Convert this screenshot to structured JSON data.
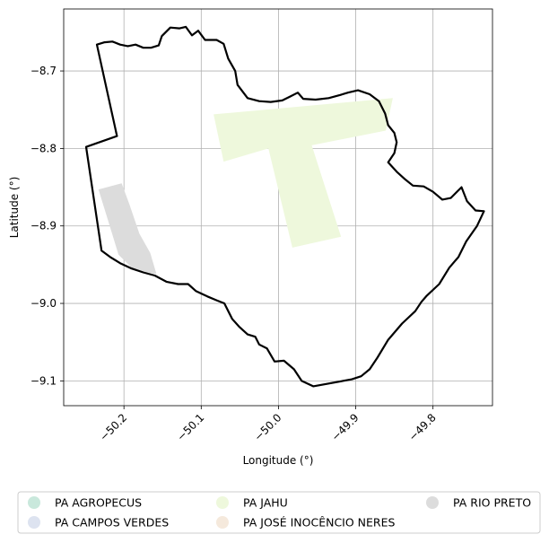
{
  "chart_data": {
    "type": "map",
    "xlabel": "Longitude (°)",
    "ylabel": "Latitude (°)",
    "xlim": [
      -50.278,
      -49.723
    ],
    "ylim": [
      -9.132,
      -8.62
    ],
    "x_ticks": [
      -50.2,
      -50.1,
      -50.0,
      -49.9,
      -49.8
    ],
    "x_tick_labels": [
      "−50.2",
      "−50.1",
      "−50.0",
      "−49.9",
      "−49.8"
    ],
    "y_ticks": [
      -8.7,
      -8.8,
      -8.9,
      -9.0,
      -9.1
    ],
    "y_tick_labels": [
      "−8.7",
      "−8.8",
      "−8.9",
      "−9.0",
      "−9.1"
    ],
    "grid": true,
    "legend_position": "bottom",
    "boundary_color": "#000000",
    "legend": [
      {
        "label": "PA AGROPECUS",
        "color": "#c9e8dc"
      },
      {
        "label": "PA CAMPOS VERDES",
        "color": "#dde3f0"
      },
      {
        "label": "PA JAHU",
        "color": "#eef8dc"
      },
      {
        "label": "PA JOSÉ INOCÊNCIO NERES",
        "color": "#f5e9dc"
      },
      {
        "label": "PA RIO PRETO",
        "color": "#dcdcdc"
      }
    ],
    "shapes": [
      {
        "name": "PA JAHU",
        "color": "#eef8dc",
        "coords": [
          [
            -50.084,
            -8.756
          ],
          [
            -49.852,
            -8.735
          ],
          [
            -49.861,
            -8.777
          ],
          [
            -49.957,
            -8.796
          ],
          [
            -49.919,
            -8.914
          ],
          [
            -49.982,
            -8.928
          ],
          [
            -50.013,
            -8.8
          ],
          [
            -50.071,
            -8.817
          ]
        ]
      },
      {
        "name": "PA RIO PRETO",
        "color": "#dcdcdc",
        "coords": [
          [
            -50.233,
            -8.853
          ],
          [
            -50.203,
            -8.845
          ],
          [
            -50.193,
            -8.872
          ],
          [
            -50.18,
            -8.91
          ],
          [
            -50.166,
            -8.935
          ],
          [
            -50.158,
            -8.962
          ],
          [
            -50.17,
            -8.96
          ],
          [
            -50.19,
            -8.954
          ],
          [
            -50.207,
            -8.937
          ],
          [
            -50.22,
            -8.895
          ]
        ]
      }
    ],
    "boundary": [
      [
        -50.235,
        -8.666
      ],
      [
        -50.225,
        -8.663
      ],
      [
        -50.215,
        -8.662
      ],
      [
        -50.205,
        -8.666
      ],
      [
        -50.195,
        -8.668
      ],
      [
        -50.185,
        -8.666
      ],
      [
        -50.175,
        -8.67
      ],
      [
        -50.165,
        -8.67
      ],
      [
        -50.155,
        -8.667
      ],
      [
        -50.151,
        -8.655
      ],
      [
        -50.14,
        -8.644
      ],
      [
        -50.128,
        -8.645
      ],
      [
        -50.12,
        -8.643
      ],
      [
        -50.112,
        -8.654
      ],
      [
        -50.104,
        -8.648
      ],
      [
        -50.095,
        -8.66
      ],
      [
        -50.08,
        -8.66
      ],
      [
        -50.071,
        -8.665
      ],
      [
        -50.065,
        -8.684
      ],
      [
        -50.056,
        -8.7
      ],
      [
        -50.053,
        -8.718
      ],
      [
        -50.04,
        -8.735
      ],
      [
        -50.025,
        -8.739
      ],
      [
        -50.01,
        -8.74
      ],
      [
        -49.995,
        -8.738
      ],
      [
        -49.985,
        -8.733
      ],
      [
        -49.975,
        -8.728
      ],
      [
        -49.968,
        -8.736
      ],
      [
        -49.952,
        -8.737
      ],
      [
        -49.935,
        -8.735
      ],
      [
        -49.92,
        -8.731
      ],
      [
        -49.91,
        -8.728
      ],
      [
        -49.897,
        -8.725
      ],
      [
        -49.882,
        -8.73
      ],
      [
        -49.87,
        -8.739
      ],
      [
        -49.862,
        -8.755
      ],
      [
        -49.858,
        -8.77
      ],
      [
        -49.85,
        -8.78
      ],
      [
        -49.847,
        -8.792
      ],
      [
        -49.85,
        -8.806
      ],
      [
        -49.858,
        -8.818
      ],
      [
        -49.847,
        -8.83
      ],
      [
        -49.836,
        -8.84
      ],
      [
        -49.826,
        -8.848
      ],
      [
        -49.812,
        -8.849
      ],
      [
        -49.8,
        -8.856
      ],
      [
        -49.788,
        -8.866
      ],
      [
        -49.777,
        -8.864
      ],
      [
        -49.763,
        -8.85
      ],
      [
        -49.756,
        -8.868
      ],
      [
        -49.745,
        -8.88
      ],
      [
        -49.734,
        -8.881
      ],
      [
        -49.743,
        -8.9
      ],
      [
        -49.757,
        -8.92
      ],
      [
        -49.767,
        -8.94
      ],
      [
        -49.779,
        -8.954
      ],
      [
        -49.792,
        -8.975
      ],
      [
        -49.808,
        -8.99
      ],
      [
        -49.815,
        -8.998
      ],
      [
        -49.823,
        -9.01
      ],
      [
        -49.84,
        -9.026
      ],
      [
        -49.858,
        -9.047
      ],
      [
        -49.872,
        -9.07
      ],
      [
        -49.882,
        -9.085
      ],
      [
        -49.893,
        -9.094
      ],
      [
        -49.905,
        -9.098
      ],
      [
        -49.955,
        -9.107
      ],
      [
        -49.97,
        -9.1
      ],
      [
        -49.98,
        -9.085
      ],
      [
        -49.993,
        -9.074
      ],
      [
        -50.005,
        -9.075
      ],
      [
        -50.015,
        -9.058
      ],
      [
        -50.025,
        -9.053
      ],
      [
        -50.03,
        -9.043
      ],
      [
        -50.04,
        -9.04
      ],
      [
        -50.051,
        -9.03
      ],
      [
        -50.06,
        -9.02
      ],
      [
        -50.07,
        -9.0
      ],
      [
        -50.08,
        -8.996
      ],
      [
        -50.092,
        -8.991
      ],
      [
        -50.107,
        -8.984
      ],
      [
        -50.117,
        -8.975
      ],
      [
        -50.13,
        -8.975
      ],
      [
        -50.145,
        -8.972
      ],
      [
        -50.16,
        -8.964
      ],
      [
        -50.175,
        -8.96
      ],
      [
        -50.19,
        -8.955
      ],
      [
        -50.205,
        -8.948
      ],
      [
        -50.218,
        -8.94
      ],
      [
        -50.229,
        -8.932
      ],
      [
        -50.249,
        -8.798
      ],
      [
        -50.209,
        -8.784
      ],
      [
        -50.235,
        -8.666
      ]
    ]
  }
}
